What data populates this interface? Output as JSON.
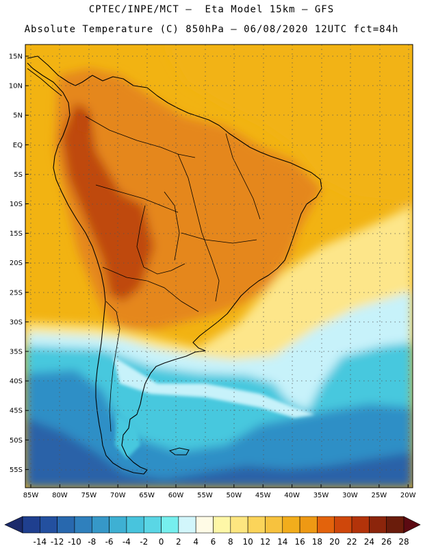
{
  "header": {
    "line1": "CPTEC/INPE/MCT —  Eta Model 15km — GFS",
    "line2": "Absolute Temperature (C) 850hPa — 06/08/2020 12UTC fct=84h"
  },
  "map": {
    "lon_labels": [
      "85W",
      "80W",
      "75W",
      "70W",
      "65W",
      "60W",
      "55W",
      "50W",
      "45W",
      "40W",
      "35W",
      "30W",
      "25W",
      "20W"
    ],
    "lat_labels": [
      "15N",
      "10N",
      "5N",
      "EQ",
      "5S",
      "10S",
      "15S",
      "20S",
      "25S",
      "30S",
      "35S",
      "40S",
      "45S",
      "50S",
      "55S"
    ],
    "lon_range": [
      -86,
      -19
    ],
    "lat_range": [
      17,
      -58
    ],
    "grid": "dotted",
    "field_colors": {
      "warm_ocean": "#f2b312",
      "hot_land": "#e5871c",
      "hottest": "#bf4a0d",
      "mild": "#fde68a",
      "cool": "#c7f2fa",
      "cold": "#46c8de",
      "colder": "#2f8fc6",
      "coldest": "#2a62a8"
    }
  },
  "colorbar": {
    "labels": [
      "-14",
      "-12",
      "-10",
      "-8",
      "-6",
      "-4",
      "-2",
      "0",
      "2",
      "4",
      "6",
      "8",
      "10",
      "12",
      "14",
      "16",
      "18",
      "20",
      "22",
      "24",
      "26",
      "28"
    ],
    "colors": [
      "#1f3f8f",
      "#23509f",
      "#2868ae",
      "#2f80bd",
      "#3698c8",
      "#3eb0d3",
      "#48c4dd",
      "#5ad6e5",
      "#76efee",
      "#d2f6fb",
      "#fffbe6",
      "#fef7a7",
      "#fde680",
      "#fbd45a",
      "#f7c23e",
      "#f2ad1c",
      "#ee9914",
      "#e3630c",
      "#cf470b",
      "#b3330a",
      "#8c250b",
      "#6a1c0b"
    ],
    "under_color": "#1b2a6b",
    "over_color": "#5c0a12"
  }
}
